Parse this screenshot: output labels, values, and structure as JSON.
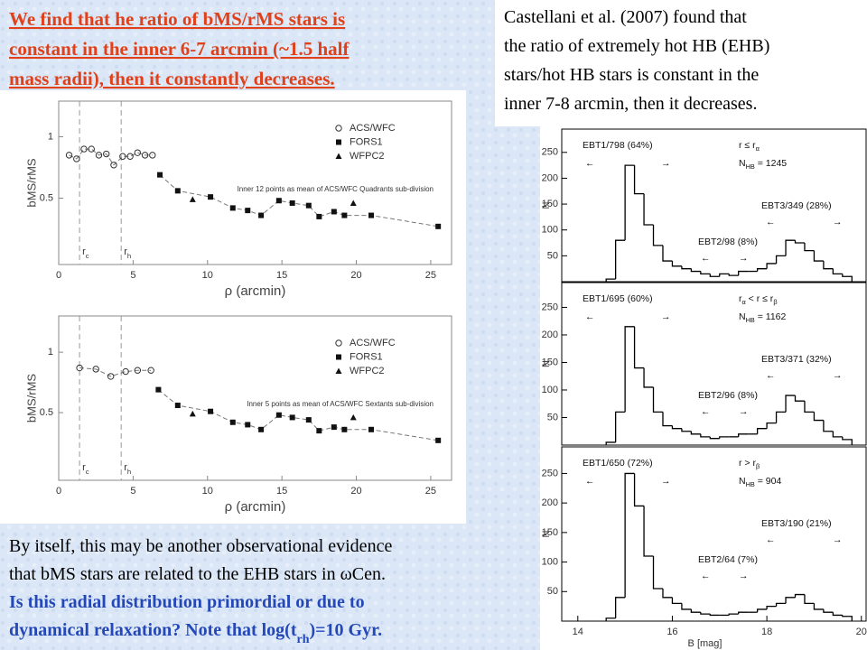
{
  "slide": {
    "claim": [
      "We find that he ratio of bMS/rMS stars is",
      "constant in the inner 6-7 arcmin (~1.5 half",
      "mass radii), then it constantly decreases."
    ],
    "castellani": [
      "Castellani et al. (2007) found that",
      "the ratio of extremely hot HB (EHB)",
      "stars/hot HB stars is constant in the",
      "inner 7-8  arcmin, then it decreases."
    ],
    "remark": [
      "By itself, this may be another observational evidence",
      "that bMS stars are related to the EHB stars in ωCen."
    ],
    "question": [
      "Is this radial distribution primordial or due to",
      [
        "dynamical relaxation? Note that log(t",
        "rh",
        ")=10 Gyr."
      ]
    ]
  },
  "chart_data": [
    {
      "type": "scatter",
      "xlabel": "ρ (arcmin)",
      "ylabel": "bMS/rMS",
      "xlim": [
        0,
        26.4
      ],
      "ylim": [
        -0.04,
        1.29
      ],
      "xticks": [
        0,
        5,
        10,
        15,
        20,
        25
      ],
      "yticks": [
        0.5,
        1
      ],
      "legend": "upper right",
      "annotation": "Inner 12 points as mean of ACS/WFC Quadrants sub-division",
      "reference_lines": [
        {
          "x": 1.4,
          "label": [
            "r",
            "c"
          ]
        },
        {
          "x": 4.2,
          "label": [
            "r",
            "h"
          ]
        }
      ],
      "series": [
        {
          "name": "ACS/WFC",
          "marker": "circle-open",
          "color": "#333333",
          "x": [
            0.7,
            1.2,
            1.7,
            2.2,
            2.7,
            3.2,
            3.7,
            4.3,
            4.8,
            5.3,
            5.8,
            6.3
          ],
          "values": [
            0.85,
            0.82,
            0.9,
            0.9,
            0.85,
            0.86,
            0.77,
            0.84,
            0.84,
            0.87,
            0.85,
            0.85
          ]
        },
        {
          "name": "FORS1",
          "marker": "square",
          "color": "#111111",
          "x": [
            6.8,
            8.0,
            10.2,
            11.7,
            12.7,
            13.6,
            14.8,
            15.7,
            16.8,
            17.5,
            18.5,
            19.2,
            21.0,
            25.5
          ],
          "values": [
            0.69,
            0.56,
            0.51,
            0.42,
            0.4,
            0.36,
            0.48,
            0.46,
            0.44,
            0.35,
            0.39,
            0.36,
            0.36,
            0.27
          ]
        },
        {
          "name": "WFPC2",
          "marker": "triangle",
          "color": "#111111",
          "x": [
            9.0,
            19.8
          ],
          "values": [
            0.49,
            0.46
          ]
        }
      ]
    },
    {
      "type": "scatter",
      "xlabel": "ρ (arcmin)",
      "ylabel": "bMS/rMS",
      "xlim": [
        0,
        26.4
      ],
      "ylim": [
        -0.06,
        1.3
      ],
      "xticks": [
        0,
        5,
        10,
        15,
        20,
        25
      ],
      "yticks": [
        0.5,
        1
      ],
      "legend": "upper right",
      "annotation": "Inner 5 points as mean of ACS/WFC Sextants sub-division",
      "reference_lines": [
        {
          "x": 1.4,
          "label": [
            "r",
            "c"
          ]
        },
        {
          "x": 4.2,
          "label": [
            "r",
            "h"
          ]
        }
      ],
      "series": [
        {
          "name": "ACS/WFC",
          "marker": "circle-open",
          "color": "#333333",
          "x": [
            1.4,
            2.5,
            3.5,
            4.5,
            5.3,
            6.2
          ],
          "values": [
            0.87,
            0.86,
            0.8,
            0.84,
            0.85,
            0.85
          ]
        },
        {
          "name": "FORS1",
          "marker": "square",
          "color": "#111111",
          "x": [
            6.7,
            8.0,
            10.2,
            11.7,
            12.7,
            13.6,
            14.8,
            15.7,
            16.8,
            17.5,
            18.5,
            19.2,
            21.0,
            25.5
          ],
          "values": [
            0.69,
            0.56,
            0.51,
            0.42,
            0.4,
            0.36,
            0.48,
            0.46,
            0.44,
            0.35,
            0.38,
            0.36,
            0.36,
            0.27
          ]
        },
        {
          "name": "WFPC2",
          "marker": "triangle",
          "color": "#111111",
          "x": [
            9.0,
            19.8
          ],
          "values": [
            0.49,
            0.46
          ]
        }
      ]
    },
    {
      "type": "histogram",
      "ylabel": "N",
      "xlim": [
        13.66,
        20.1
      ],
      "ylim": [
        0,
        295
      ],
      "yticks": [
        50,
        100,
        150,
        200,
        250
      ],
      "color": "#000000",
      "bins": [
        14.6,
        14.8,
        15.0,
        15.2,
        15.4,
        15.6,
        15.8,
        16.0,
        16.2,
        16.4,
        16.6,
        16.8,
        17.0,
        17.2,
        17.4,
        17.6,
        17.8,
        18.0,
        18.2,
        18.4,
        18.6,
        18.8,
        19.0,
        19.2,
        19.4,
        19.6,
        19.8
      ],
      "values": [
        5,
        80,
        225,
        170,
        110,
        70,
        40,
        30,
        25,
        20,
        15,
        10,
        15,
        12,
        20,
        20,
        25,
        35,
        50,
        80,
        75,
        60,
        40,
        25,
        15,
        10
      ],
      "annotations": {
        "group1": "EBT1/798 (64%)",
        "condition": [
          "r ≤ r",
          "α"
        ],
        "nhb": [
          "N",
          "HB",
          " = 1245"
        ],
        "group3": "EBT3/349 (28%)",
        "group2": "EBT2/98 (8%)"
      }
    },
    {
      "type": "histogram",
      "ylabel": "N",
      "xlim": [
        13.66,
        20.1
      ],
      "ylim": [
        0,
        295
      ],
      "yticks": [
        50,
        100,
        150,
        200,
        250
      ],
      "color": "#000000",
      "bins": [
        14.6,
        14.8,
        15.0,
        15.2,
        15.4,
        15.6,
        15.8,
        16.0,
        16.2,
        16.4,
        16.6,
        16.8,
        17.0,
        17.2,
        17.4,
        17.6,
        17.8,
        18.0,
        18.2,
        18.4,
        18.6,
        18.8,
        19.0,
        19.2,
        19.4,
        19.6,
        19.8
      ],
      "values": [
        5,
        60,
        215,
        140,
        105,
        60,
        35,
        30,
        25,
        20,
        15,
        12,
        15,
        15,
        20,
        20,
        30,
        40,
        60,
        90,
        80,
        60,
        45,
        25,
        15,
        10
      ],
      "annotations": {
        "group1": "EBT1/695 (60%)",
        "condition": [
          "r",
          "α",
          " < r ≤ r",
          "β"
        ],
        "nhb": [
          "N",
          "HB",
          " = 1162"
        ],
        "group3": "EBT3/371 (32%)",
        "group2": "EBT2/96 (8%)"
      }
    },
    {
      "type": "histogram",
      "ylabel": "N",
      "xlabel": "B [mag]",
      "xlim": [
        13.66,
        20.1
      ],
      "ylim": [
        0,
        295
      ],
      "xticks": [
        14,
        16,
        18,
        20
      ],
      "yticks": [
        50,
        100,
        150,
        200,
        250
      ],
      "color": "#000000",
      "bins": [
        14.6,
        14.8,
        15.0,
        15.2,
        15.4,
        15.6,
        15.8,
        16.0,
        16.2,
        16.4,
        16.6,
        16.8,
        17.0,
        17.2,
        17.4,
        17.6,
        17.8,
        18.0,
        18.2,
        18.4,
        18.6,
        18.8,
        19.0,
        19.2,
        19.4,
        19.6,
        19.8
      ],
      "values": [
        5,
        40,
        250,
        195,
        110,
        55,
        40,
        30,
        20,
        15,
        12,
        10,
        10,
        12,
        15,
        15,
        20,
        25,
        30,
        40,
        45,
        30,
        20,
        15,
        10,
        8
      ],
      "annotations": {
        "group1": "EBT1/650 (72%)",
        "condition": [
          "r > r",
          "β"
        ],
        "nhb": [
          "N",
          "HB",
          " = 904"
        ],
        "group3": "EBT3/190 (21%)",
        "group2": "EBT2/64 (7%)"
      }
    }
  ]
}
